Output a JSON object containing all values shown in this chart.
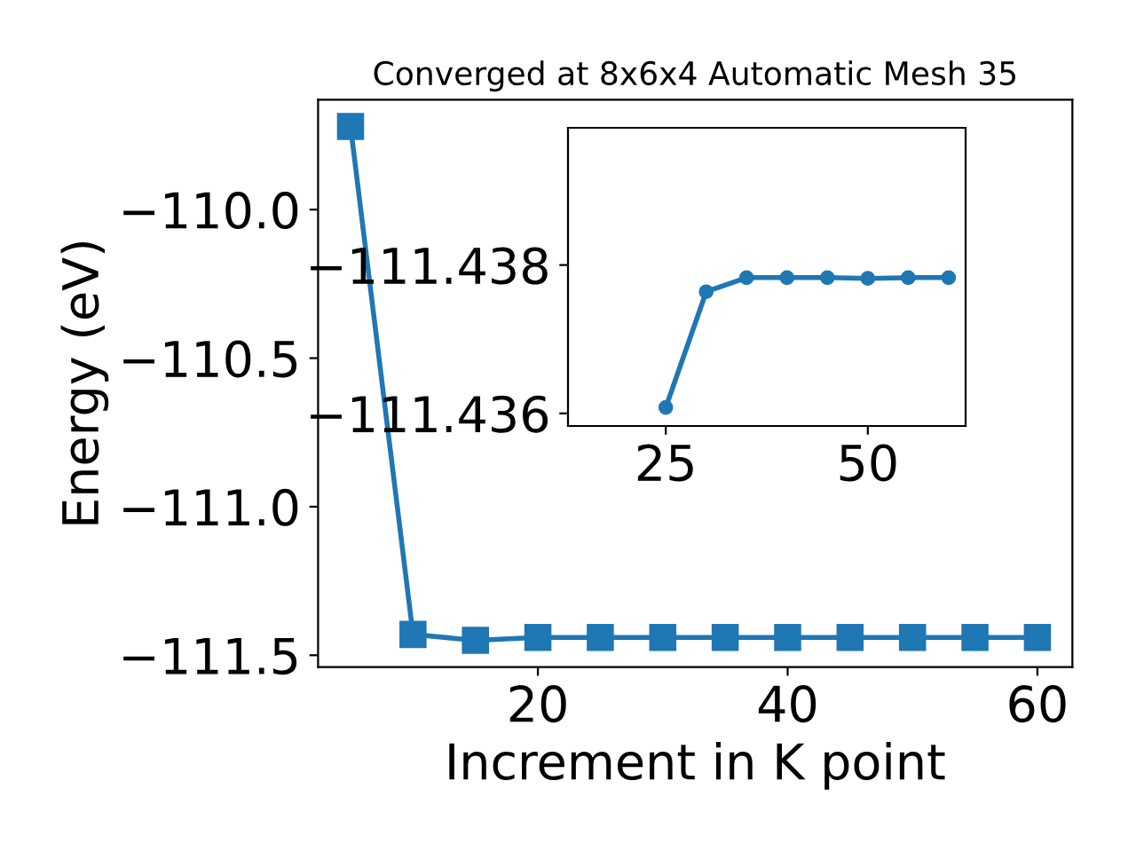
{
  "chart_data": [
    {
      "type": "line",
      "title": "Converged at 8x6x4 Automatic Mesh 35",
      "xlabel": "Increment in K point",
      "ylabel": "Energy (eV)",
      "x": [
        5,
        10,
        15,
        20,
        25,
        30,
        35,
        40,
        45,
        50,
        55,
        60
      ],
      "series": [
        {
          "color": "#1f77b4",
          "values": [
            -109.72,
            -111.43,
            -111.45,
            -111.44,
            -111.44,
            -111.44,
            -111.44,
            -111.44,
            -111.44,
            -111.44,
            -111.44,
            -111.44
          ]
        }
      ],
      "xlim": [
        2.4,
        62.8
      ],
      "ylim": [
        -111.54,
        -109.63
      ],
      "xticks": [
        20,
        40,
        60
      ],
      "yticks": [
        {
          "value": -110.0,
          "label": "−110.0"
        },
        {
          "value": -110.5,
          "label": "−110.5"
        },
        {
          "value": -111.0,
          "label": "−111.0"
        },
        {
          "value": -111.5,
          "label": "−111.5"
        }
      ],
      "marker": "square",
      "line_style": "solid",
      "grid": false,
      "legend": false
    },
    {
      "type": "line",
      "x": [
        25,
        30,
        35,
        40,
        45,
        50,
        55,
        60
      ],
      "series": [
        {
          "color": "#1f77b4",
          "values": [
            -111.43608,
            -111.43764,
            -111.43783,
            -111.43783,
            -111.43783,
            -111.43782,
            -111.43783,
            -111.43783
          ]
        }
      ],
      "xlim": [
        12.9,
        62.1
      ],
      "ylim": [
        -111.43583,
        -111.43985
      ],
      "xticks": [
        25,
        50
      ],
      "yticks": [
        {
          "value": -111.438,
          "label": "−111.438"
        },
        {
          "value": -111.436,
          "label": "−111.436"
        }
      ],
      "marker": "circle",
      "line_style": "solid",
      "grid": false,
      "legend": false
    }
  ]
}
